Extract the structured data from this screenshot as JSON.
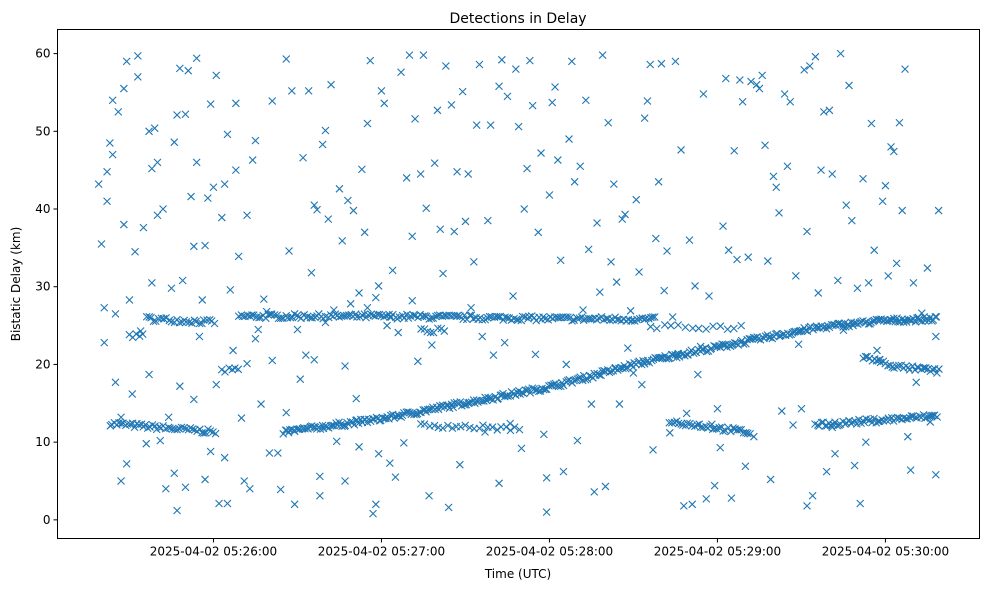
{
  "chart_data": {
    "type": "scatter",
    "title": "Detections in Delay",
    "xlabel": "Time (UTC)",
    "ylabel": "Bistatic Delay (km)",
    "x_units": "seconds after 2025-04-02 05:25:00",
    "xlim": [
      4.3,
      333.6
    ],
    "ylim": [
      -2.4,
      63.1
    ],
    "x_ticks": [
      {
        "value": 60,
        "label": "2025-04-02 05:26:00"
      },
      {
        "value": 120,
        "label": "2025-04-02 05:27:00"
      },
      {
        "value": 180,
        "label": "2025-04-02 05:28:00"
      },
      {
        "value": 240,
        "label": "2025-04-02 05:29:00"
      },
      {
        "value": 300,
        "label": "2025-04-02 05:30:00"
      }
    ],
    "y_ticks": [
      {
        "value": 0,
        "label": "0"
      },
      {
        "value": 10,
        "label": "10"
      },
      {
        "value": 20,
        "label": "20"
      },
      {
        "value": 30,
        "label": "30"
      },
      {
        "value": 40,
        "label": "40"
      },
      {
        "value": 50,
        "label": "50"
      },
      {
        "value": 60,
        "label": "60"
      }
    ],
    "grid": false,
    "marker": "x",
    "color": "#1f77b4",
    "tracks": [
      {
        "t": [
          23,
          61
        ],
        "delay": [
          12.4,
          11.3
        ],
        "interval_s": 0.8
      },
      {
        "t": [
          36,
          61
        ],
        "delay": [
          25.9,
          25.4
        ],
        "interval_s": 0.9
      },
      {
        "t": [
          30,
          36
        ],
        "delay": [
          23.6,
          23.8
        ],
        "interval_s": 1.2
      },
      {
        "t": [
          63,
          70
        ],
        "delay": [
          19.2,
          19.3
        ],
        "interval_s": 1.2
      },
      {
        "t": [
          69,
          120,
          180,
          218
        ],
        "delay": [
          26.2,
          26.2,
          25.9,
          25.8
        ],
        "interval_s": 0.8
      },
      {
        "t": [
          85,
          120,
          180,
          216,
          255,
          275,
          298,
          319
        ],
        "delay": [
          11.3,
          13.0,
          17.1,
          20.5,
          23.3,
          24.7,
          25.6,
          25.9
        ],
        "interval_s": 0.6
      },
      {
        "t": [
          134,
          170
        ],
        "delay": [
          12.2,
          11.7
        ],
        "interval_s": 1.6
      },
      {
        "t": [
          134,
          143
        ],
        "delay": [
          24.3,
          24.4
        ],
        "interval_s": 1.2
      },
      {
        "t": [
          216,
          250
        ],
        "delay": [
          24.8,
          24.8
        ],
        "interval_s": 2.5
      },
      {
        "t": [
          223,
          252
        ],
        "delay": [
          12.7,
          11.2
        ],
        "interval_s": 0.8
      },
      {
        "t": [
          275,
          319
        ],
        "delay": [
          12.2,
          13.4
        ],
        "interval_s": 0.7
      },
      {
        "t": [
          292,
          304,
          320
        ],
        "delay": [
          21.0,
          19.7,
          19.1
        ],
        "interval_s": 0.8
      }
    ],
    "points": [
      [
        19,
        43.2
      ],
      [
        20,
        35.5
      ],
      [
        21,
        27.3
      ],
      [
        21,
        22.8
      ],
      [
        22,
        44.8
      ],
      [
        22,
        41.0
      ],
      [
        23,
        48.5
      ],
      [
        24,
        54.0
      ],
      [
        24,
        47.0
      ],
      [
        25,
        17.7
      ],
      [
        25,
        26.5
      ],
      [
        26,
        52.5
      ],
      [
        27,
        5.0
      ],
      [
        27,
        13.2
      ],
      [
        28,
        38.0
      ],
      [
        28,
        55.5
      ],
      [
        29,
        7.2
      ],
      [
        29,
        59.0
      ],
      [
        30,
        28.3
      ],
      [
        31,
        16.2
      ],
      [
        32,
        34.5
      ],
      [
        33,
        59.7
      ],
      [
        33,
        57.0
      ],
      [
        34,
        24.3
      ],
      [
        35,
        37.6
      ],
      [
        36,
        9.8
      ],
      [
        37,
        50.0
      ],
      [
        37,
        18.7
      ],
      [
        38,
        30.5
      ],
      [
        38,
        45.2
      ],
      [
        39,
        50.4
      ],
      [
        40,
        39.2
      ],
      [
        40,
        46.0
      ],
      [
        41,
        10.2
      ],
      [
        42,
        40.0
      ],
      [
        43,
        4.0
      ],
      [
        44,
        13.2
      ],
      [
        45,
        29.8
      ],
      [
        46,
        48.6
      ],
      [
        46,
        6.0
      ],
      [
        47,
        1.2
      ],
      [
        47,
        52.1
      ],
      [
        48,
        17.2
      ],
      [
        48,
        58.1
      ],
      [
        49,
        30.8
      ],
      [
        50,
        52.2
      ],
      [
        50,
        4.2
      ],
      [
        51,
        57.8
      ],
      [
        52,
        41.6
      ],
      [
        53,
        15.5
      ],
      [
        53,
        35.2
      ],
      [
        54,
        46.0
      ],
      [
        54,
        59.4
      ],
      [
        55,
        23.6
      ],
      [
        56,
        28.3
      ],
      [
        57,
        35.3
      ],
      [
        57,
        5.2
      ],
      [
        58,
        41.4
      ],
      [
        59,
        53.5
      ],
      [
        59,
        8.8
      ],
      [
        60,
        42.8
      ],
      [
        61,
        17.4
      ],
      [
        61,
        57.2
      ],
      [
        62,
        2.1
      ],
      [
        63,
        38.9
      ],
      [
        64,
        43.2
      ],
      [
        64,
        8.0
      ],
      [
        65,
        2.1
      ],
      [
        65,
        49.6
      ],
      [
        66,
        29.6
      ],
      [
        67,
        21.8
      ],
      [
        68,
        45.0
      ],
      [
        68,
        53.6
      ],
      [
        69,
        33.9
      ],
      [
        70,
        13.1
      ],
      [
        71,
        5.0
      ],
      [
        72,
        20.1
      ],
      [
        72,
        39.2
      ],
      [
        73,
        4.0
      ],
      [
        74,
        46.3
      ],
      [
        75,
        48.8
      ],
      [
        75,
        23.3
      ],
      [
        76,
        24.5
      ],
      [
        77,
        14.9
      ],
      [
        78,
        28.4
      ],
      [
        79,
        26.8
      ],
      [
        80,
        8.6
      ],
      [
        81,
        20.5
      ],
      [
        81,
        53.9
      ],
      [
        83,
        8.6
      ],
      [
        84,
        3.9
      ],
      [
        86,
        59.3
      ],
      [
        86,
        13.8
      ],
      [
        87,
        34.6
      ],
      [
        88,
        55.2
      ],
      [
        89,
        2.0
      ],
      [
        90,
        24.5
      ],
      [
        91,
        18.1
      ],
      [
        92,
        46.6
      ],
      [
        93,
        21.2
      ],
      [
        94,
        55.2
      ],
      [
        95,
        31.8
      ],
      [
        96,
        20.6
      ],
      [
        96,
        40.5
      ],
      [
        97,
        39.9
      ],
      [
        98,
        3.1
      ],
      [
        98,
        5.6
      ],
      [
        99,
        48.3
      ],
      [
        100,
        50.1
      ],
      [
        100,
        25.4
      ],
      [
        101,
        38.7
      ],
      [
        102,
        56.0
      ],
      [
        103,
        27.0
      ],
      [
        104,
        10.1
      ],
      [
        105,
        42.6
      ],
      [
        106,
        35.9
      ],
      [
        107,
        5.0
      ],
      [
        107,
        19.8
      ],
      [
        108,
        41.1
      ],
      [
        109,
        27.8
      ],
      [
        110,
        39.8
      ],
      [
        111,
        15.6
      ],
      [
        112,
        29.2
      ],
      [
        112,
        9.4
      ],
      [
        113,
        45.1
      ],
      [
        114,
        37.0
      ],
      [
        115,
        51.0
      ],
      [
        115,
        27.3
      ],
      [
        116,
        59.1
      ],
      [
        117,
        0.8
      ],
      [
        118,
        2.0
      ],
      [
        118,
        28.6
      ],
      [
        119,
        30.1
      ],
      [
        119,
        8.5
      ],
      [
        120,
        55.2
      ],
      [
        121,
        53.6
      ],
      [
        122,
        25.0
      ],
      [
        123,
        7.3
      ],
      [
        123,
        26.1
      ],
      [
        124,
        32.1
      ],
      [
        125,
        5.5
      ],
      [
        126,
        24.1
      ],
      [
        127,
        57.6
      ],
      [
        128,
        9.9
      ],
      [
        129,
        44.0
      ],
      [
        130,
        59.8
      ],
      [
        131,
        28.2
      ],
      [
        131,
        36.5
      ],
      [
        132,
        51.6
      ],
      [
        133,
        20.4
      ],
      [
        134,
        44.5
      ],
      [
        135,
        59.8
      ],
      [
        136,
        40.1
      ],
      [
        137,
        3.1
      ],
      [
        138,
        22.5
      ],
      [
        139,
        45.9
      ],
      [
        140,
        52.7
      ],
      [
        141,
        37.4
      ],
      [
        142,
        31.7
      ],
      [
        143,
        58.4
      ],
      [
        144,
        1.6
      ],
      [
        145,
        53.4
      ],
      [
        146,
        37.1
      ],
      [
        147,
        44.8
      ],
      [
        148,
        7.1
      ],
      [
        149,
        55.1
      ],
      [
        150,
        38.4
      ],
      [
        151,
        44.5
      ],
      [
        152,
        27.3
      ],
      [
        153,
        33.2
      ],
      [
        154,
        50.8
      ],
      [
        155,
        58.6
      ],
      [
        156,
        23.6
      ],
      [
        157,
        11.3
      ],
      [
        158,
        38.5
      ],
      [
        159,
        50.8
      ],
      [
        160,
        21.2
      ],
      [
        162,
        55.8
      ],
      [
        162,
        4.7
      ],
      [
        163,
        59.2
      ],
      [
        164,
        22.8
      ],
      [
        165,
        54.5
      ],
      [
        166,
        12.4
      ],
      [
        167,
        28.8
      ],
      [
        168,
        58.0
      ],
      [
        169,
        50.6
      ],
      [
        170,
        9.2
      ],
      [
        171,
        40.0
      ],
      [
        172,
        45.2
      ],
      [
        173,
        59.1
      ],
      [
        174,
        53.3
      ],
      [
        175,
        21.3
      ],
      [
        176,
        37.0
      ],
      [
        177,
        47.2
      ],
      [
        178,
        11.0
      ],
      [
        179,
        5.4
      ],
      [
        179,
        1.0
      ],
      [
        180,
        41.8
      ],
      [
        181,
        53.7
      ],
      [
        182,
        55.7
      ],
      [
        183,
        46.3
      ],
      [
        184,
        33.4
      ],
      [
        185,
        6.2
      ],
      [
        186,
        20.0
      ],
      [
        187,
        49.0
      ],
      [
        188,
        59.0
      ],
      [
        189,
        43.5
      ],
      [
        190,
        10.2
      ],
      [
        191,
        45.5
      ],
      [
        192,
        27.0
      ],
      [
        193,
        54.0
      ],
      [
        194,
        34.8
      ],
      [
        195,
        14.9
      ],
      [
        196,
        3.6
      ],
      [
        197,
        38.2
      ],
      [
        198,
        29.3
      ],
      [
        199,
        59.8
      ],
      [
        200,
        4.3
      ],
      [
        201,
        51.1
      ],
      [
        202,
        33.2
      ],
      [
        203,
        43.2
      ],
      [
        204,
        30.6
      ],
      [
        205,
        14.9
      ],
      [
        206,
        38.7
      ],
      [
        207,
        39.3
      ],
      [
        208,
        22.1
      ],
      [
        209,
        26.9
      ],
      [
        210,
        18.9
      ],
      [
        211,
        41.2
      ],
      [
        212,
        31.9
      ],
      [
        213,
        17.4
      ],
      [
        214,
        51.7
      ],
      [
        215,
        53.9
      ],
      [
        216,
        58.6
      ],
      [
        217,
        9.0
      ],
      [
        218,
        36.2
      ],
      [
        219,
        43.5
      ],
      [
        220,
        58.7
      ],
      [
        221,
        29.5
      ],
      [
        222,
        34.6
      ],
      [
        223,
        11.2
      ],
      [
        224,
        26.1
      ],
      [
        225,
        59.0
      ],
      [
        226,
        21.4
      ],
      [
        227,
        47.6
      ],
      [
        228,
        1.8
      ],
      [
        229,
        13.7
      ],
      [
        230,
        36.0
      ],
      [
        231,
        2.0
      ],
      [
        232,
        30.1
      ],
      [
        233,
        18.7
      ],
      [
        234,
        22.3
      ],
      [
        235,
        54.8
      ],
      [
        236,
        2.7
      ],
      [
        237,
        28.8
      ],
      [
        238,
        12.3
      ],
      [
        239,
        4.4
      ],
      [
        240,
        14.3
      ],
      [
        241,
        9.3
      ],
      [
        242,
        37.8
      ],
      [
        243,
        56.8
      ],
      [
        244,
        34.7
      ],
      [
        245,
        2.8
      ],
      [
        246,
        47.5
      ],
      [
        247,
        33.5
      ],
      [
        248,
        56.6
      ],
      [
        249,
        53.8
      ],
      [
        250,
        6.9
      ],
      [
        251,
        33.8
      ],
      [
        252,
        56.4
      ],
      [
        253,
        10.7
      ],
      [
        254,
        56.0
      ],
      [
        255,
        55.5
      ],
      [
        256,
        57.2
      ],
      [
        257,
        48.2
      ],
      [
        258,
        33.3
      ],
      [
        259,
        5.2
      ],
      [
        260,
        44.2
      ],
      [
        261,
        42.8
      ],
      [
        262,
        39.5
      ],
      [
        263,
        14.0
      ],
      [
        264,
        54.8
      ],
      [
        265,
        45.5
      ],
      [
        266,
        53.8
      ],
      [
        267,
        12.2
      ],
      [
        268,
        31.4
      ],
      [
        269,
        22.6
      ],
      [
        270,
        14.3
      ],
      [
        271,
        57.9
      ],
      [
        272,
        1.8
      ],
      [
        272,
        37.1
      ],
      [
        273,
        58.4
      ],
      [
        274,
        3.1
      ],
      [
        275,
        59.6
      ],
      [
        276,
        29.2
      ],
      [
        277,
        45.0
      ],
      [
        278,
        52.5
      ],
      [
        279,
        6.2
      ],
      [
        280,
        52.7
      ],
      [
        281,
        44.5
      ],
      [
        282,
        8.5
      ],
      [
        283,
        30.8
      ],
      [
        284,
        60.0
      ],
      [
        285,
        24.4
      ],
      [
        286,
        40.5
      ],
      [
        287,
        55.9
      ],
      [
        288,
        38.5
      ],
      [
        289,
        7.0
      ],
      [
        290,
        29.8
      ],
      [
        291,
        2.1
      ],
      [
        292,
        43.9
      ],
      [
        293,
        10.0
      ],
      [
        294,
        30.5
      ],
      [
        295,
        51.0
      ],
      [
        296,
        34.7
      ],
      [
        297,
        21.8
      ],
      [
        298,
        20.6
      ],
      [
        299,
        41.0
      ],
      [
        300,
        43.0
      ],
      [
        301,
        31.4
      ],
      [
        302,
        48.0
      ],
      [
        303,
        47.4
      ],
      [
        304,
        33.0
      ],
      [
        305,
        51.1
      ],
      [
        306,
        39.8
      ],
      [
        307,
        58.0
      ],
      [
        308,
        10.7
      ],
      [
        309,
        6.4
      ],
      [
        310,
        30.5
      ],
      [
        311,
        17.7
      ],
      [
        312,
        25.8
      ],
      [
        313,
        26.6
      ],
      [
        314,
        19.5
      ],
      [
        315,
        32.4
      ],
      [
        316,
        12.6
      ],
      [
        318,
        23.6
      ],
      [
        319,
        39.8
      ],
      [
        318,
        5.8
      ],
      [
        287,
        12.7
      ],
      [
        281,
        11.9
      ]
    ]
  }
}
